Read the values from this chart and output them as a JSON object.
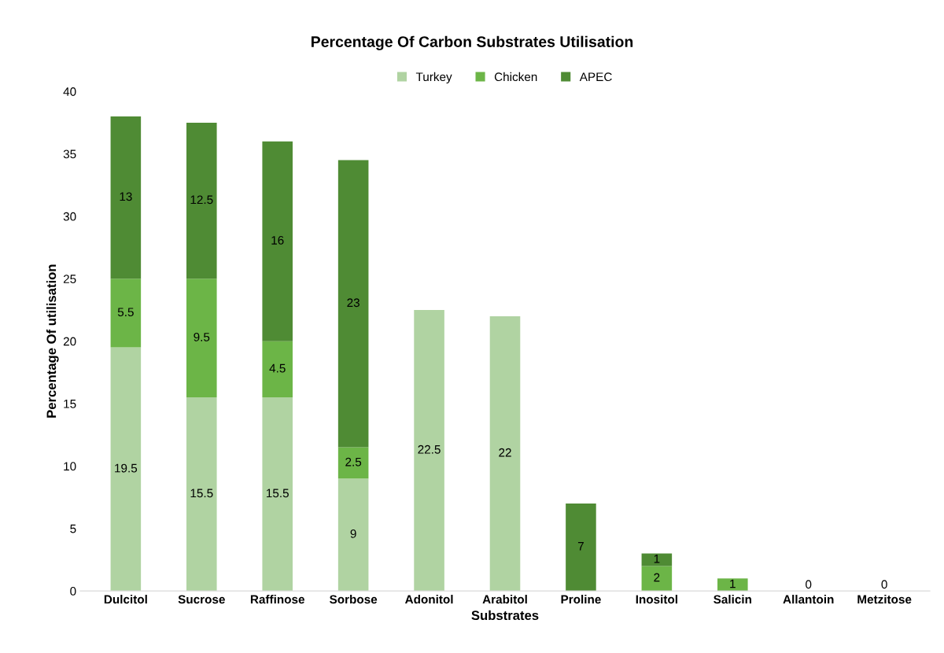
{
  "chart_data": {
    "type": "bar",
    "title": "Percentage Of Carbon Substrates Utilisation",
    "xlabel": "Substrates",
    "ylabel": "Percentage Of utilisation",
    "categories": [
      "Dulcitol",
      "Sucrose",
      "Raffinose",
      "Sorbose",
      "Adonitol",
      "Arabitol",
      "Proline",
      "Inositol",
      "Salicin",
      "Allantoin",
      "Metzitose"
    ],
    "stacked": true,
    "ylim": [
      0,
      40
    ],
    "yticks": [
      0,
      5,
      10,
      15,
      20,
      25,
      30,
      35,
      40
    ],
    "grid": false,
    "legend": "top",
    "series": [
      {
        "name": "Turkey",
        "color": "#b0d3a2",
        "values": [
          19.5,
          15.5,
          15.5,
          9,
          22.5,
          22,
          null,
          null,
          null,
          0,
          0
        ],
        "value_labels": [
          "19.5",
          "15.5",
          "15.5",
          "9",
          "22.5",
          "22",
          null,
          null,
          null,
          "0",
          "0"
        ]
      },
      {
        "name": "Chicken",
        "color": "#6cb547",
        "values": [
          5.5,
          9.5,
          4.5,
          2.5,
          null,
          null,
          null,
          2,
          1,
          null,
          null
        ],
        "value_labels": [
          "5.5",
          "9.5",
          "4.5",
          "2.5",
          null,
          null,
          null,
          "2",
          "1",
          null,
          null
        ]
      },
      {
        "name": "APEC",
        "color": "#4f8b34",
        "values": [
          13,
          12.5,
          16,
          23,
          null,
          null,
          7,
          1,
          null,
          null,
          null
        ],
        "value_labels": [
          "13",
          "12.5",
          "16",
          "23",
          null,
          null,
          "7",
          "1",
          null,
          null,
          null
        ]
      }
    ]
  }
}
